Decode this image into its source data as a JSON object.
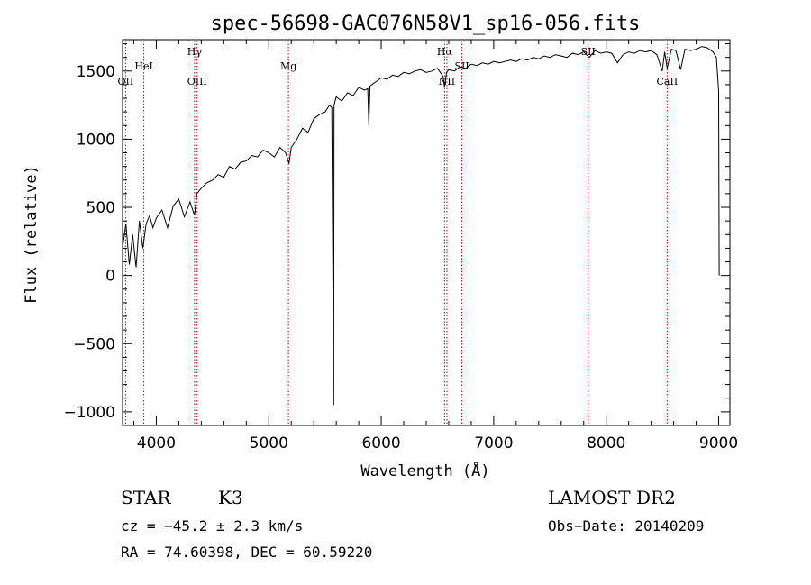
{
  "chart_data": {
    "type": "line",
    "title": "spec-56698-GAC076N58V1_sp16-056.fits",
    "xlabel": "Wavelength (Å)",
    "ylabel": "Flux (relative)",
    "xlim": [
      3700,
      9100
    ],
    "ylim": [
      -1100,
      1730
    ],
    "xticks": [
      4000,
      5000,
      6000,
      7000,
      8000,
      9000
    ],
    "yticks": [
      -1000,
      -500,
      0,
      500,
      1000,
      1500
    ],
    "ytick_labels": [
      "−1000",
      "−500",
      "0",
      "500",
      "1000",
      "1500"
    ],
    "line_color": "#000000",
    "marker_color": "#cc0000",
    "series": [
      {
        "x": [
          3700,
          3730,
          3760,
          3790,
          3820,
          3850,
          3880,
          3910,
          3940,
          3970,
          4000,
          4050,
          4100,
          4150,
          4200,
          4250,
          4300,
          4340,
          4360,
          4400,
          4450,
          4500,
          4550,
          4600,
          4650,
          4700,
          4750,
          4800,
          4850,
          4900,
          4950,
          5000,
          5050,
          5100,
          5150,
          5180,
          5200,
          5250,
          5300,
          5350,
          5400,
          5450,
          5500,
          5540,
          5560,
          5577,
          5580,
          5600,
          5650,
          5700,
          5750,
          5800,
          5850,
          5880,
          5890,
          5900,
          5950,
          6000,
          6050,
          6100,
          6150,
          6200,
          6250,
          6300,
          6350,
          6400,
          6450,
          6500,
          6550,
          6563,
          6580,
          6600,
          6650,
          6700,
          6750,
          6800,
          6850,
          6900,
          6950,
          7000,
          7050,
          7100,
          7150,
          7200,
          7250,
          7300,
          7350,
          7400,
          7450,
          7500,
          7550,
          7600,
          7650,
          7700,
          7750,
          7800,
          7850,
          7900,
          7950,
          8000,
          8050,
          8100,
          8150,
          8200,
          8250,
          8300,
          8350,
          8400,
          8450,
          8498,
          8520,
          8542,
          8580,
          8620,
          8662,
          8700,
          8750,
          8800,
          8850,
          8900,
          8950,
          8980,
          9000,
          9005
        ],
        "y": [
          200,
          380,
          80,
          300,
          60,
          400,
          200,
          380,
          440,
          350,
          420,
          480,
          350,
          510,
          560,
          430,
          540,
          440,
          600,
          640,
          680,
          700,
          740,
          720,
          800,
          780,
          830,
          840,
          880,
          870,
          920,
          900,
          870,
          940,
          900,
          820,
          940,
          1000,
          1080,
          1050,
          1150,
          1180,
          1200,
          1250,
          1230,
          -950,
          1250,
          1310,
          1280,
          1340,
          1320,
          1380,
          1360,
          1370,
          1100,
          1390,
          1420,
          1450,
          1440,
          1470,
          1460,
          1490,
          1480,
          1500,
          1510,
          1490,
          1500,
          1520,
          1460,
          1380,
          1490,
          1510,
          1500,
          1530,
          1520,
          1550,
          1540,
          1560,
          1550,
          1570,
          1560,
          1570,
          1580,
          1570,
          1590,
          1580,
          1600,
          1590,
          1610,
          1600,
          1620,
          1610,
          1600,
          1630,
          1620,
          1640,
          1600,
          1650,
          1630,
          1640,
          1630,
          1560,
          1620,
          1640,
          1630,
          1650,
          1640,
          1650,
          1620,
          1500,
          1640,
          1520,
          1660,
          1650,
          1510,
          1660,
          1650,
          1660,
          1680,
          1670,
          1640,
          1600,
          1350,
          0
        ]
      }
    ],
    "line_markers": [
      {
        "label": "OII",
        "x": 3727,
        "level": "low"
      },
      {
        "label": "HeI",
        "x": 3889,
        "level": "mid"
      },
      {
        "label": "Hγ",
        "x": 4340,
        "level": "high"
      },
      {
        "label": "OIII",
        "x": 4363,
        "level": "low"
      },
      {
        "label": "Mg",
        "x": 5175,
        "level": "mid"
      },
      {
        "label": "Hα",
        "x": 6563,
        "level": "high"
      },
      {
        "label": "NII",
        "x": 6584,
        "level": "low"
      },
      {
        "label": "SII",
        "x": 6717,
        "level": "mid"
      },
      {
        "label": "SII",
        "x": 7840,
        "level": "high"
      },
      {
        "label": "CaII",
        "x": 8542,
        "level": "low"
      }
    ]
  },
  "footer": {
    "object_class": "STAR",
    "subclass": "K3",
    "survey": "LAMOST DR2",
    "velocity": "cz = −45.2 ± 2.3 km/s",
    "obs_date": "Obs−Date: 20140209",
    "coords": "RA =  74.60398, DEC =  60.59220"
  }
}
